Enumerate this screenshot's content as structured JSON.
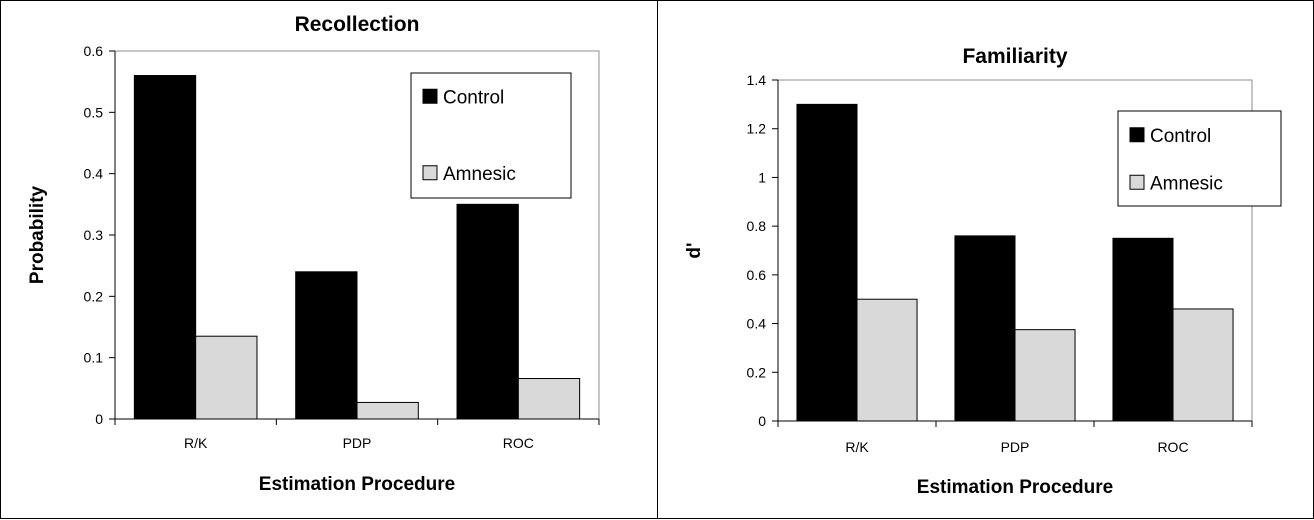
{
  "chart_data": [
    {
      "type": "bar",
      "title": "Recollection",
      "xlabel": "Estimation Procedure",
      "ylabel": "Probability",
      "categories": [
        "R/K",
        "PDP",
        "ROC"
      ],
      "ylim": [
        0,
        0.6
      ],
      "yticks": [
        "0",
        "0.1",
        "0.2",
        "0.3",
        "0.4",
        "0.5",
        "0.6"
      ],
      "series": [
        {
          "name": "Control",
          "values": [
            0.56,
            0.24,
            0.35
          ],
          "color": "#000000"
        },
        {
          "name": "Amnesic",
          "values": [
            0.135,
            0.027,
            0.066
          ],
          "color": "#d9d9d9"
        }
      ],
      "grid": false,
      "legend": "top-right"
    },
    {
      "type": "bar",
      "title": "Familiarity",
      "xlabel": "Estimation Procedure",
      "ylabel": "d'",
      "categories": [
        "R/K",
        "PDP",
        "ROC"
      ],
      "ylim": [
        0,
        1.4
      ],
      "yticks": [
        "0",
        "0.2",
        "0.4",
        "0.6",
        "0.8",
        "1",
        "1.2",
        "1.4"
      ],
      "series": [
        {
          "name": "Control",
          "values": [
            1.3,
            0.76,
            0.75
          ],
          "color": "#000000"
        },
        {
          "name": "Amnesic",
          "values": [
            0.5,
            0.375,
            0.46
          ],
          "color": "#d9d9d9"
        }
      ],
      "grid": false,
      "legend": "top-right"
    }
  ]
}
